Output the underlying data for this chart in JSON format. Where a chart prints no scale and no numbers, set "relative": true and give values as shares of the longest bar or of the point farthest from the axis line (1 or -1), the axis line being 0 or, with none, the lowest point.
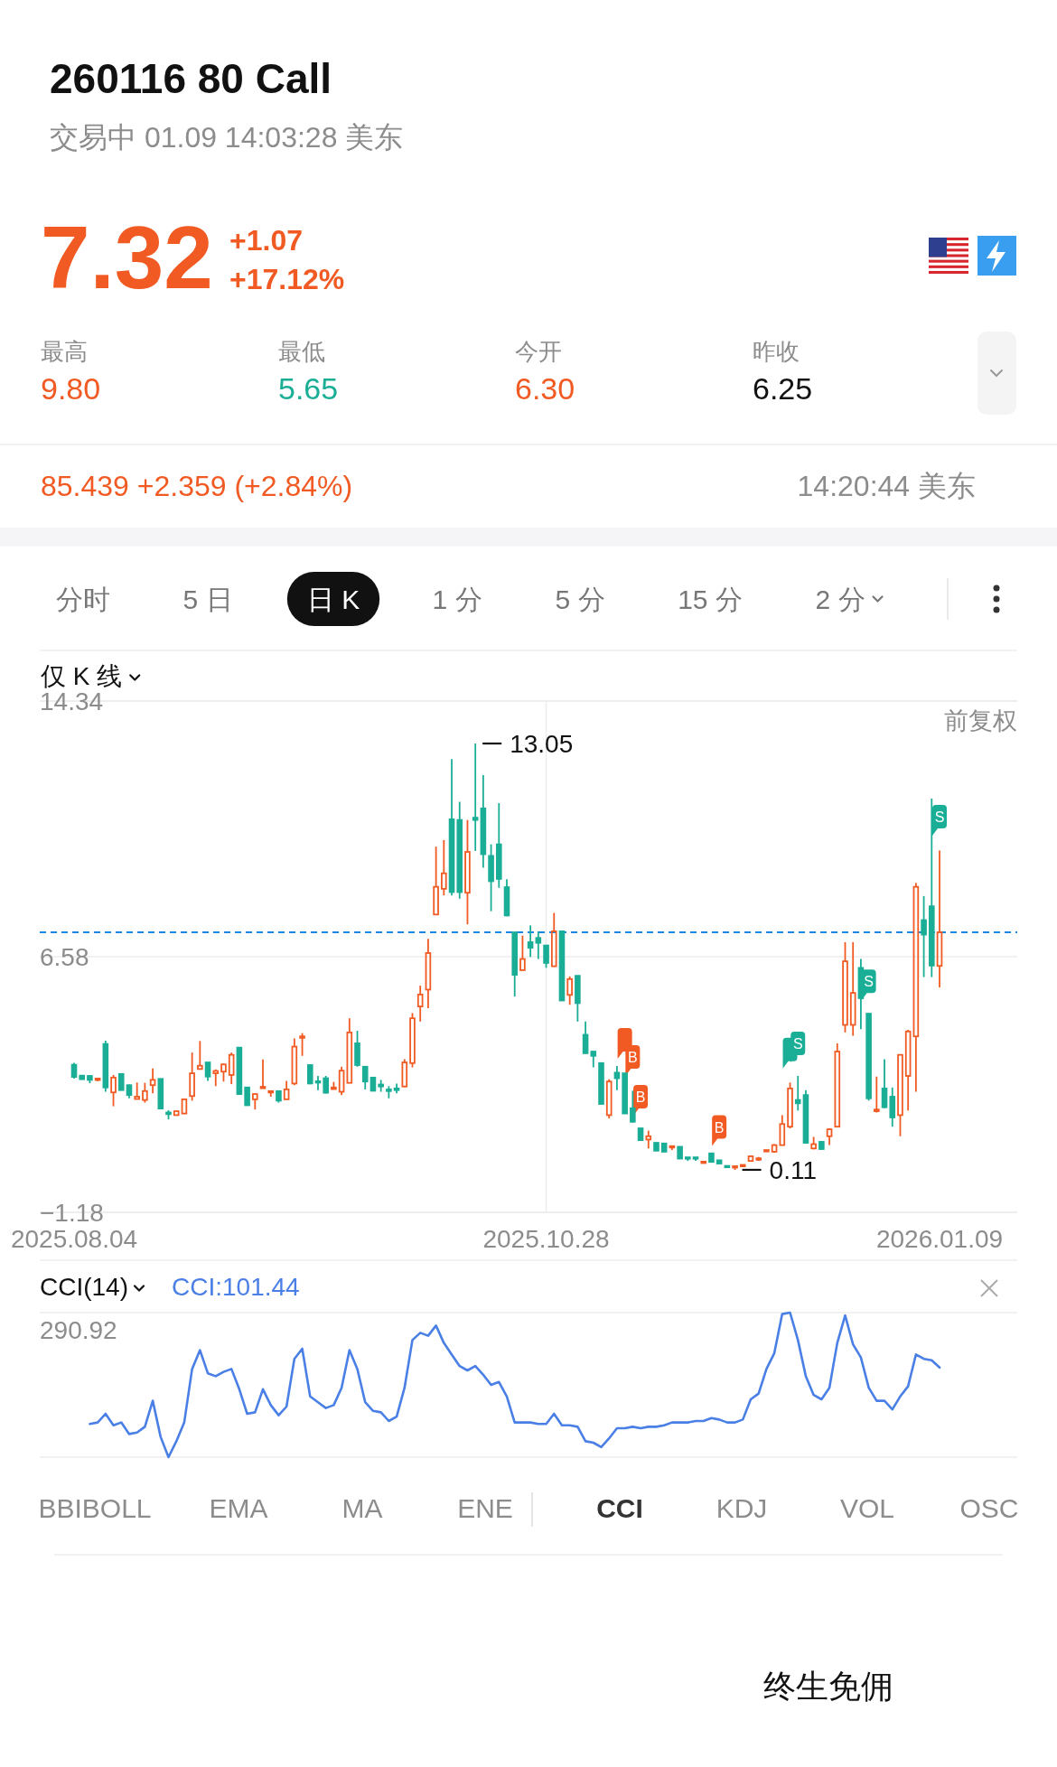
{
  "chart_data": [
    {
      "type": "candlestick",
      "title": "260116 80 Call",
      "subtitle": "交易中 01.09 14:03:28 美东",
      "annotations": [
        "7.32",
        "+1.07",
        "+17.12%",
        "最高",
        "9.80",
        "最低",
        "5.65",
        "今开",
        "6.30",
        "昨收",
        "6.25",
        "85.439 +2.359 (+2.84%)",
        "14:20:44 美东",
        "分时",
        "5 日",
        "日 K",
        "1 分",
        "5 分",
        "15 分",
        "2 分",
        "仅 K 线",
        "前复权",
        "13.05",
        "0.11"
      ],
      "categories": [
        "2025.08.04",
        null,
        null,
        null,
        null,
        null,
        null,
        null,
        null,
        null,
        null,
        null,
        null,
        null,
        null,
        null,
        null,
        null,
        null,
        null,
        null,
        null,
        null,
        null,
        null,
        null,
        null,
        null,
        null,
        null,
        null,
        null,
        null,
        null,
        null,
        null,
        null,
        null,
        null,
        null,
        null,
        null,
        null,
        null,
        null,
        null,
        null,
        null,
        null,
        null,
        null,
        null,
        null,
        null,
        null,
        null,
        null,
        null,
        null,
        null,
        "2025.10.28",
        null,
        null,
        null,
        null,
        null,
        null,
        null,
        null,
        null,
        null,
        null,
        null,
        null,
        null,
        null,
        null,
        null,
        null,
        null,
        null,
        null,
        null,
        null,
        null,
        null,
        null,
        null,
        null,
        null,
        null,
        null,
        null,
        null,
        null,
        null,
        null,
        null,
        null,
        null,
        null,
        null,
        null,
        null,
        null,
        null,
        null,
        null,
        null,
        null,
        "2026.01.09"
      ],
      "ohlc": [
        [
          3.3,
          3.36,
          2.88,
          2.93
        ],
        [
          2.97,
          2.97,
          2.86,
          2.86
        ],
        [
          2.96,
          2.98,
          2.74,
          2.84
        ],
        [
          2.84,
          2.9,
          2.8,
          2.88
        ],
        [
          3.93,
          4.03,
          2.48,
          2.61
        ],
        [
          2.46,
          2.99,
          2.04,
          2.91
        ],
        [
          3.02,
          3.02,
          2.53,
          2.53
        ],
        [
          2.68,
          2.7,
          2.28,
          2.38
        ],
        [
          2.26,
          2.76,
          2.25,
          2.33
        ],
        [
          2.23,
          2.75,
          2.15,
          2.5
        ],
        [
          2.68,
          3.19,
          2.43,
          2.84
        ],
        [
          2.87,
          2.87,
          1.97,
          1.97
        ],
        [
          1.85,
          1.92,
          1.64,
          1.8
        ],
        [
          1.77,
          1.89,
          1.77,
          1.89
        ],
        [
          1.82,
          2.27,
          1.8,
          2.25
        ],
        [
          2.35,
          3.67,
          2.21,
          3.04
        ],
        [
          3.17,
          4.02,
          3.16,
          3.27
        ],
        [
          3.37,
          3.37,
          2.81,
          2.94
        ],
        [
          3.04,
          3.16,
          2.65,
          3.11
        ],
        [
          3.09,
          3.33,
          2.79,
          3.31
        ],
        [
          2.99,
          3.67,
          2.71,
          3.6
        ],
        [
          3.82,
          3.82,
          2.41,
          2.41
        ],
        [
          2.61,
          2.63,
          2.07,
          2.07
        ],
        [
          2.25,
          2.43,
          1.94,
          2.41
        ],
        [
          2.61,
          3.46,
          2.6,
          2.63
        ],
        [
          2.47,
          2.52,
          2.33,
          2.5
        ],
        [
          2.5,
          2.5,
          2.15,
          2.21
        ],
        [
          2.25,
          2.81,
          2.25,
          2.55
        ],
        [
          2.73,
          4.1,
          2.68,
          3.85
        ],
        [
          4.13,
          4.26,
          3.57,
          4.16
        ],
        [
          3.29,
          3.31,
          2.71,
          2.73
        ],
        [
          2.8,
          2.96,
          2.53,
          2.76
        ],
        [
          2.89,
          2.96,
          2.43,
          2.45
        ],
        [
          2.56,
          2.78,
          2.56,
          2.61
        ],
        [
          2.48,
          3.24,
          2.38,
          3.12
        ],
        [
          2.75,
          4.71,
          2.75,
          4.28
        ],
        [
          3.95,
          4.33,
          3.24,
          3.29
        ],
        [
          3.24,
          3.24,
          2.55,
          2.79
        ],
        [
          2.91,
          2.91,
          2.51,
          2.51
        ],
        [
          2.7,
          2.84,
          2.48,
          2.64
        ],
        [
          2.55,
          2.65,
          2.28,
          2.5
        ],
        [
          2.58,
          2.73,
          2.43,
          2.53
        ],
        [
          2.64,
          3.47,
          2.62,
          3.37
        ],
        [
          3.35,
          4.87,
          3.22,
          4.71
        ],
        [
          5.07,
          5.7,
          4.61,
          5.43
        ],
        [
          5.58,
          7.12,
          5.02,
          6.69
        ],
        [
          7.86,
          9.92,
          7.86,
          8.7
        ],
        [
          8.64,
          10.12,
          8.44,
          9.11
        ],
        [
          10.75,
          12.58,
          8.44,
          8.54
        ],
        [
          10.73,
          11.28,
          8.34,
          8.54
        ],
        [
          8.52,
          10.73,
          7.56,
          9.76
        ],
        [
          10.8,
          13.05,
          9.79,
          10.73
        ],
        [
          11.08,
          12.09,
          9.28,
          9.69
        ],
        [
          9.64,
          9.99,
          7.96,
          8.87
        ],
        [
          9.99,
          11.24,
          8.67,
          8.94
        ],
        [
          8.69,
          8.93,
          7.81,
          7.83
        ],
        [
          7.32,
          7.32,
          5.37,
          6.03
        ],
        [
          6.17,
          7.22,
          6.17,
          6.51
        ],
        [
          7.02,
          7.53,
          6.57,
          6.85
        ],
        [
          7.15,
          7.35,
          6.51,
          7.0
        ],
        [
          6.92,
          6.92,
          6.24,
          6.39
        ],
        [
          6.29,
          7.91,
          6.27,
          7.35
        ],
        [
          7.35,
          7.35,
          5.25,
          5.25
        ],
        [
          5.42,
          5.98,
          5.12,
          5.9
        ],
        [
          6.0,
          6.0,
          4.61,
          5.17
        ],
        [
          4.21,
          4.61,
          3.63,
          3.65
        ],
        [
          3.7,
          3.7,
          3.22,
          3.57
        ],
        [
          3.35,
          3.35,
          2.11,
          2.11
        ],
        [
          1.77,
          2.86,
          1.67,
          2.79
        ],
        [
          3.06,
          3.26,
          2.53,
          2.89
        ],
        [
          3.04,
          3.04,
          1.82,
          1.82
        ],
        [
          1.98,
          2.51,
          1.54,
          1.57
        ],
        [
          1.37,
          1.37,
          1.01,
          1.01
        ],
        [
          1.03,
          1.3,
          0.76,
          1.13
        ],
        [
          0.93,
          0.93,
          0.69,
          0.69
        ],
        [
          0.91,
          0.91,
          0.66,
          0.66
        ],
        [
          0.8,
          0.83,
          0.71,
          0.83
        ],
        [
          0.81,
          0.81,
          0.45,
          0.45
        ],
        [
          0.49,
          0.49,
          0.38,
          0.47
        ],
        [
          0.49,
          0.49,
          0.38,
          0.47
        ],
        [
          0.34,
          0.36,
          0.34,
          0.36
        ],
        [
          0.61,
          0.61,
          0.35,
          0.35
        ],
        [
          0.4,
          0.4,
          0.3,
          0.3
        ],
        [
          0.23,
          0.23,
          0.2,
          0.2
        ],
        [
          0.19,
          0.22,
          0.11,
          0.22
        ],
        [
          0.24,
          0.27,
          0.23,
          0.26
        ],
        [
          0.38,
          0.54,
          0.38,
          0.52
        ],
        [
          0.43,
          0.5,
          0.38,
          0.46
        ],
        [
          0.69,
          0.71,
          0.69,
          0.71
        ],
        [
          0.66,
          0.89,
          0.63,
          0.86
        ],
        [
          0.86,
          1.77,
          0.86,
          1.5
        ],
        [
          1.42,
          2.76,
          1.37,
          2.58
        ],
        [
          2.23,
          2.96,
          1.91,
          2.13
        ],
        [
          2.38,
          2.53,
          0.93,
          0.93
        ],
        [
          0.76,
          1.11,
          0.73,
          0.89
        ],
        [
          0.96,
          0.96,
          0.74,
          0.74
        ],
        [
          1.13,
          1.37,
          0.86,
          1.34
        ],
        [
          1.42,
          3.95,
          1.42,
          3.7
        ],
        [
          4.51,
          7.02,
          4.28,
          6.44
        ],
        [
          4.51,
          7.02,
          4.18,
          5.48
        ],
        [
          6.24,
          6.51,
          4.38,
          5.32
        ],
        [
          4.85,
          4.85,
          2.21,
          2.28
        ],
        [
          1.89,
          2.94,
          1.85,
          1.94
        ],
        [
          2.58,
          3.47,
          1.98,
          2.01
        ],
        [
          2.33,
          2.61,
          1.42,
          1.7
        ],
        [
          1.77,
          3.6,
          1.13,
          3.6
        ],
        [
          2.96,
          4.36,
          1.91,
          4.31
        ],
        [
          4.16,
          8.82,
          2.48,
          8.7
        ],
        [
          7.69,
          8.42,
          5.96,
          7.25
        ],
        [
          8.11,
          11.38,
          5.96,
          6.31
        ],
        [
          6.3,
          9.8,
          5.65,
          7.32
        ]
      ],
      "colors": [
        "#1aae96",
        "#1aae96",
        "#1aae96",
        "#f15a22",
        "#1aae96",
        "#f15a22",
        "#1aae96",
        "#1aae96",
        "#f15a22",
        "#f15a22",
        "#f15a22",
        "#1aae96",
        "#1aae96",
        "#f15a22",
        "#f15a22",
        "#f15a22",
        "#f15a22",
        "#1aae96",
        "#f15a22",
        "#f15a22",
        "#f15a22",
        "#1aae96",
        "#1aae96",
        "#f15a22",
        "#f15a22",
        "#f15a22",
        "#1aae96",
        "#f15a22",
        "#f15a22",
        "#f15a22",
        "#1aae96",
        "#1aae96",
        "#1aae96",
        "#f15a22",
        "#f15a22",
        "#f15a22",
        "#1aae96",
        "#1aae96",
        "#1aae96",
        "#1aae96",
        "#1aae96",
        "#1aae96",
        "#f15a22",
        "#f15a22",
        "#f15a22",
        "#f15a22",
        "#f15a22",
        "#f15a22",
        "#1aae96",
        "#1aae96",
        "#f15a22",
        "#1aae96",
        "#1aae96",
        "#1aae96",
        "#1aae96",
        "#1aae96",
        "#1aae96",
        "#f15a22",
        "#1aae96",
        "#1aae96",
        "#1aae96",
        "#f15a22",
        "#1aae96",
        "#f15a22",
        "#1aae96",
        "#1aae96",
        "#1aae96",
        "#1aae96",
        "#f15a22",
        "#1aae96",
        "#1aae96",
        "#1aae96",
        "#1aae96",
        "#f15a22",
        "#1aae96",
        "#1aae96",
        "#f15a22",
        "#1aae96",
        "#1aae96",
        "#1aae96",
        "#f15a22",
        "#1aae96",
        "#1aae96",
        "#1aae96",
        "#f15a22",
        "#f15a22",
        "#f15a22",
        "#f15a22",
        "#f15a22",
        "#f15a22",
        "#f15a22",
        "#f15a22",
        "#1aae96",
        "#1aae96",
        "#f15a22",
        "#1aae96",
        "#f15a22",
        "#f15a22",
        "#f15a22",
        "#f15a22",
        "#1aae96",
        "#1aae96",
        "#f15a22",
        "#1aae96",
        "#1aae96",
        "#f15a22",
        "#f15a22",
        "#f15a22",
        "#1aae96",
        "#1aae96",
        "#f15a22"
      ],
      "series": [
        {
          "type": "scatter",
          "name": "B",
          "color": "#f15a22",
          "values": [
            null,
            null,
            null,
            null,
            null,
            null,
            null,
            null,
            null,
            null,
            null,
            null,
            null,
            null,
            null,
            null,
            null,
            null,
            null,
            null,
            null,
            null,
            null,
            null,
            null,
            null,
            null,
            null,
            null,
            null,
            null,
            null,
            null,
            null,
            null,
            null,
            null,
            null,
            null,
            null,
            null,
            null,
            null,
            null,
            null,
            null,
            null,
            null,
            null,
            null,
            null,
            null,
            null,
            null,
            null,
            null,
            null,
            null,
            null,
            null,
            null,
            null,
            null,
            null,
            null,
            null,
            null,
            null,
            null,
            null,
            3.95,
            3.43,
            2.22,
            null,
            null,
            null,
            null,
            null,
            null,
            null,
            null,
            null,
            1.3,
            null,
            null,
            null,
            null,
            null,
            null,
            null,
            null,
            null,
            null,
            null,
            null,
            null,
            null,
            null,
            null,
            null,
            null,
            null,
            null,
            null,
            null,
            null,
            null,
            null,
            null,
            null,
            null
          ]
        },
        {
          "type": "scatter",
          "name": "S",
          "color": "#1aae96",
          "values": [
            null,
            null,
            null,
            null,
            null,
            null,
            null,
            null,
            null,
            null,
            null,
            null,
            null,
            null,
            null,
            null,
            null,
            null,
            null,
            null,
            null,
            null,
            null,
            null,
            null,
            null,
            null,
            null,
            null,
            null,
            null,
            null,
            null,
            null,
            null,
            null,
            null,
            null,
            null,
            null,
            null,
            null,
            null,
            null,
            null,
            null,
            null,
            null,
            null,
            null,
            null,
            null,
            null,
            null,
            null,
            null,
            null,
            null,
            null,
            null,
            null,
            null,
            null,
            null,
            null,
            null,
            null,
            null,
            null,
            null,
            null,
            null,
            null,
            null,
            null,
            null,
            null,
            null,
            null,
            null,
            null,
            null,
            null,
            null,
            null,
            null,
            null,
            null,
            null,
            null,
            null,
            3.65,
            3.84,
            null,
            null,
            null,
            null,
            null,
            null,
            null,
            null,
            5.72,
            null,
            null,
            null,
            null,
            null,
            null,
            null,
            null,
            10.72
          ]
        }
      ],
      "ylim": [
        -1.18,
        14.34
      ],
      "yticks": [
        14.34,
        6.58,
        {
          "value": -1.18,
          "label": "−1.18"
        }
      ],
      "grid": true,
      "ref_lines": [
        {
          "axis": "y",
          "value": 7.32,
          "color": "#1a86e6",
          "line_style": "dashed"
        }
      ]
    },
    {
      "type": "line",
      "title": "CCI(14)",
      "legend": "top left",
      "relative": true,
      "categories": [
        null,
        null,
        null,
        null,
        null,
        null,
        null,
        null,
        null,
        null,
        null,
        null,
        null,
        null,
        null,
        null,
        null,
        null,
        null,
        null,
        null,
        null,
        null,
        null,
        null,
        null,
        null,
        null,
        null,
        null,
        null,
        null,
        null,
        null,
        null,
        null,
        null,
        null,
        null,
        null,
        null,
        null,
        null,
        null,
        null,
        null,
        null,
        null,
        null,
        null,
        null,
        null,
        null,
        null,
        null,
        null,
        null,
        null,
        null,
        null,
        null,
        null,
        null,
        null,
        null,
        null,
        null,
        null,
        null,
        null,
        null,
        null,
        null,
        null,
        null,
        null,
        null,
        null,
        null,
        null,
        null,
        null,
        null,
        null,
        null,
        null,
        null,
        null,
        null,
        null,
        null,
        null,
        null,
        null,
        null,
        null,
        null,
        null,
        null,
        null,
        null,
        null,
        null,
        null,
        null,
        null,
        null,
        null,
        null,
        null,
        null
      ],
      "series": [
        {
          "name": "CCI:101.44",
          "color": "#4a7fe6",
          "values": [
            null,
            null,
            0.23,
            0.24,
            0.3,
            0.22,
            0.24,
            0.16,
            0.17,
            0.21,
            0.39,
            0.14,
            0,
            0.11,
            0.24,
            0.61,
            0.74,
            0.58,
            0.56,
            0.59,
            0.61,
            0.47,
            0.3,
            0.31,
            0.47,
            0.36,
            0.29,
            0.35,
            0.68,
            0.75,
            0.42,
            0.38,
            0.34,
            0.36,
            0.48,
            0.74,
            0.61,
            0.38,
            0.32,
            0.31,
            0.25,
            0.28,
            0.48,
            0.81,
            0.86,
            0.84,
            0.91,
            0.79,
            0.71,
            0.63,
            0.6,
            0.63,
            0.57,
            0.5,
            0.52,
            0.42,
            0.24,
            0.24,
            0.24,
            0.23,
            0.23,
            0.3,
            0.22,
            0.22,
            0.21,
            0.11,
            0.1,
            0.07,
            0.13,
            0.2,
            0.2,
            0.21,
            0.2,
            0.21,
            0.21,
            0.22,
            0.24,
            0.24,
            0.24,
            0.25,
            0.25,
            0.27,
            0.26,
            0.24,
            0.24,
            0.26,
            0.4,
            0.44,
            0.61,
            0.72,
            0.99,
            1,
            0.81,
            0.56,
            0.43,
            0.4,
            0.48,
            0.79,
            0.98,
            0.78,
            0.69,
            0.48,
            0.39,
            0.39,
            0.33,
            0.42,
            0.49,
            0.71,
            0.68,
            0.67,
            0.62
          ]
        }
      ],
      "annotations": [
        "290.92",
        "BBIBOLL",
        "EMA",
        "MA",
        "ENE",
        "CCI",
        "KDJ",
        "VOL",
        "OSC",
        "终生免佣"
      ]
    }
  ]
}
